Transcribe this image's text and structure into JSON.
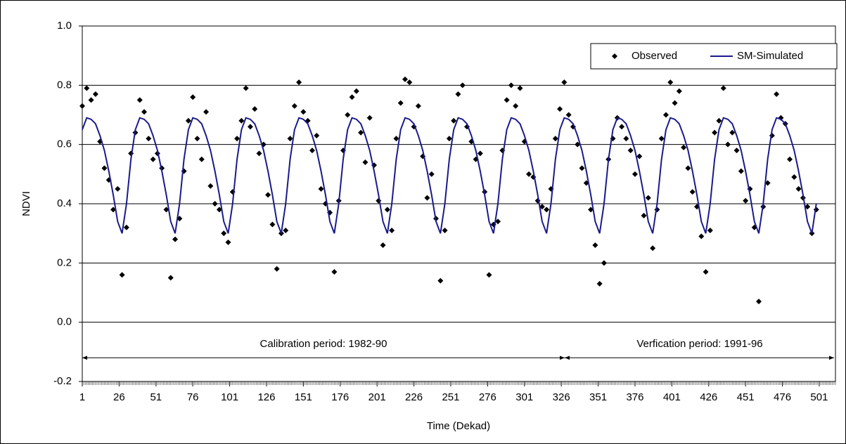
{
  "chart_data": {
    "type": "scatter_line",
    "x_label": "Time (Dekad)",
    "y_label": "NDVI",
    "xlim": [
      1,
      512
    ],
    "ylim": [
      -0.2,
      1.0
    ],
    "xticks": [
      1,
      26,
      51,
      76,
      101,
      126,
      151,
      176,
      201,
      226,
      251,
      276,
      301,
      326,
      351,
      376,
      401,
      426,
      451,
      476,
      501
    ],
    "yticks": [
      -0.2,
      {
        "value": 0,
        "label": "0.0"
      },
      0.2,
      0.4,
      0.6,
      0.8,
      {
        "value": 1,
        "label": "1.0"
      }
    ],
    "grid": true,
    "legend": "upper right",
    "annotations": [
      "Calibration period: 1982-90",
      "Verfication period: 1991-96"
    ],
    "x": [
      1,
      4,
      7,
      10,
      13,
      16,
      19,
      22,
      25,
      28,
      31,
      34,
      37,
      40,
      43,
      46,
      49,
      52,
      55,
      58,
      61,
      64,
      67,
      70,
      73,
      76,
      79,
      82,
      85,
      88,
      91,
      94,
      97,
      100,
      103,
      106,
      109,
      112,
      115,
      118,
      121,
      124,
      127,
      130,
      133,
      136,
      139,
      142,
      145,
      148,
      151,
      154,
      157,
      160,
      163,
      166,
      169,
      172,
      175,
      178,
      181,
      184,
      187,
      190,
      193,
      196,
      199,
      202,
      205,
      208,
      211,
      214,
      217,
      220,
      223,
      226,
      229,
      232,
      235,
      238,
      241,
      244,
      247,
      250,
      253,
      256,
      259,
      262,
      265,
      268,
      271,
      274,
      277,
      280,
      283,
      286,
      289,
      292,
      295,
      298,
      301,
      304,
      307,
      310,
      313,
      316,
      319,
      322,
      325,
      328,
      331,
      334,
      337,
      340,
      343,
      346,
      349,
      352,
      355,
      358,
      361,
      364,
      367,
      370,
      373,
      376,
      379,
      382,
      385,
      388,
      391,
      394,
      397,
      400,
      403,
      406,
      409,
      412,
      415,
      418,
      421,
      424,
      427,
      430,
      433,
      436,
      439,
      442,
      445,
      448,
      451,
      454,
      457,
      460,
      463,
      466,
      469,
      472,
      475,
      478,
      481,
      484,
      487,
      490,
      493,
      496,
      499
    ],
    "series": [
      {
        "name": "Observed",
        "color": "#000000",
        "kind": "marker",
        "values": [
          0.73,
          0.79,
          0.75,
          0.77,
          0.61,
          0.52,
          0.48,
          0.38,
          0.45,
          0.16,
          0.32,
          0.57,
          0.64,
          0.75,
          0.71,
          0.62,
          0.55,
          0.57,
          0.52,
          0.38,
          0.15,
          0.28,
          0.35,
          0.51,
          0.68,
          0.76,
          0.62,
          0.55,
          0.71,
          0.46,
          0.4,
          0.38,
          0.3,
          0.27,
          0.44,
          0.62,
          0.68,
          0.79,
          0.66,
          0.72,
          0.57,
          0.6,
          0.43,
          0.33,
          0.18,
          0.3,
          0.31,
          0.62,
          0.73,
          0.81,
          0.71,
          0.68,
          0.58,
          0.63,
          0.45,
          0.4,
          0.37,
          0.17,
          0.41,
          0.58,
          0.7,
          0.76,
          0.78,
          0.64,
          0.54,
          0.69,
          0.53,
          0.41,
          0.26,
          0.38,
          0.31,
          0.62,
          0.74,
          0.82,
          0.81,
          0.66,
          0.73,
          0.56,
          0.42,
          0.5,
          0.35,
          0.14,
          0.31,
          0.62,
          0.68,
          0.77,
          0.8,
          0.66,
          0.61,
          0.55,
          0.57,
          0.44,
          0.16,
          0.33,
          0.34,
          0.58,
          0.75,
          0.8,
          0.73,
          0.79,
          0.61,
          0.5,
          0.49,
          0.41,
          0.39,
          0.38,
          0.45,
          0.62,
          0.72,
          0.81,
          0.7,
          0.66,
          0.6,
          0.52,
          0.47,
          0.38,
          0.26,
          0.13,
          0.2,
          0.55,
          0.62,
          0.69,
          0.66,
          0.62,
          0.58,
          0.5,
          0.56,
          0.36,
          0.42,
          0.25,
          0.38,
          0.62,
          0.7,
          0.81,
          0.74,
          0.78,
          0.59,
          0.52,
          0.44,
          0.39,
          0.29,
          0.17,
          0.31,
          0.64,
          0.68,
          0.79,
          0.6,
          0.64,
          0.58,
          0.51,
          0.41,
          0.45,
          0.32,
          0.07,
          0.39,
          0.47,
          0.63,
          0.77,
          0.69,
          0.67,
          0.55,
          0.49,
          0.45,
          0.42,
          0.39,
          0.3,
          0.38
        ]
      },
      {
        "name": "SM-Simulated",
        "color": "#1a1a8c",
        "kind": "line",
        "values": [
          0.65,
          0.69,
          0.685,
          0.67,
          0.63,
          0.58,
          0.51,
          0.43,
          0.34,
          0.3,
          0.4,
          0.55,
          0.65,
          0.69,
          0.685,
          0.67,
          0.63,
          0.58,
          0.51,
          0.43,
          0.34,
          0.3,
          0.4,
          0.55,
          0.65,
          0.69,
          0.685,
          0.67,
          0.63,
          0.58,
          0.51,
          0.43,
          0.34,
          0.3,
          0.4,
          0.55,
          0.65,
          0.69,
          0.685,
          0.67,
          0.63,
          0.58,
          0.51,
          0.43,
          0.34,
          0.3,
          0.4,
          0.55,
          0.65,
          0.69,
          0.685,
          0.67,
          0.63,
          0.58,
          0.51,
          0.43,
          0.34,
          0.3,
          0.4,
          0.55,
          0.65,
          0.69,
          0.685,
          0.67,
          0.63,
          0.58,
          0.51,
          0.43,
          0.34,
          0.3,
          0.4,
          0.55,
          0.65,
          0.69,
          0.685,
          0.67,
          0.63,
          0.58,
          0.51,
          0.43,
          0.34,
          0.3,
          0.4,
          0.55,
          0.65,
          0.69,
          0.685,
          0.67,
          0.63,
          0.58,
          0.51,
          0.43,
          0.34,
          0.3,
          0.4,
          0.55,
          0.65,
          0.69,
          0.685,
          0.67,
          0.63,
          0.58,
          0.51,
          0.43,
          0.34,
          0.3,
          0.4,
          0.55,
          0.65,
          0.69,
          0.685,
          0.67,
          0.63,
          0.58,
          0.51,
          0.43,
          0.34,
          0.3,
          0.4,
          0.55,
          0.65,
          0.69,
          0.685,
          0.67,
          0.63,
          0.58,
          0.51,
          0.43,
          0.34,
          0.3,
          0.4,
          0.55,
          0.65,
          0.69,
          0.685,
          0.67,
          0.63,
          0.58,
          0.51,
          0.43,
          0.34,
          0.3,
          0.4,
          0.55,
          0.65,
          0.69,
          0.685,
          0.67,
          0.63,
          0.58,
          0.51,
          0.43,
          0.34,
          0.3,
          0.4,
          0.55,
          0.65,
          0.69,
          0.685,
          0.67,
          0.63,
          0.58,
          0.51,
          0.43,
          0.34,
          0.3,
          0.4
        ]
      }
    ]
  }
}
